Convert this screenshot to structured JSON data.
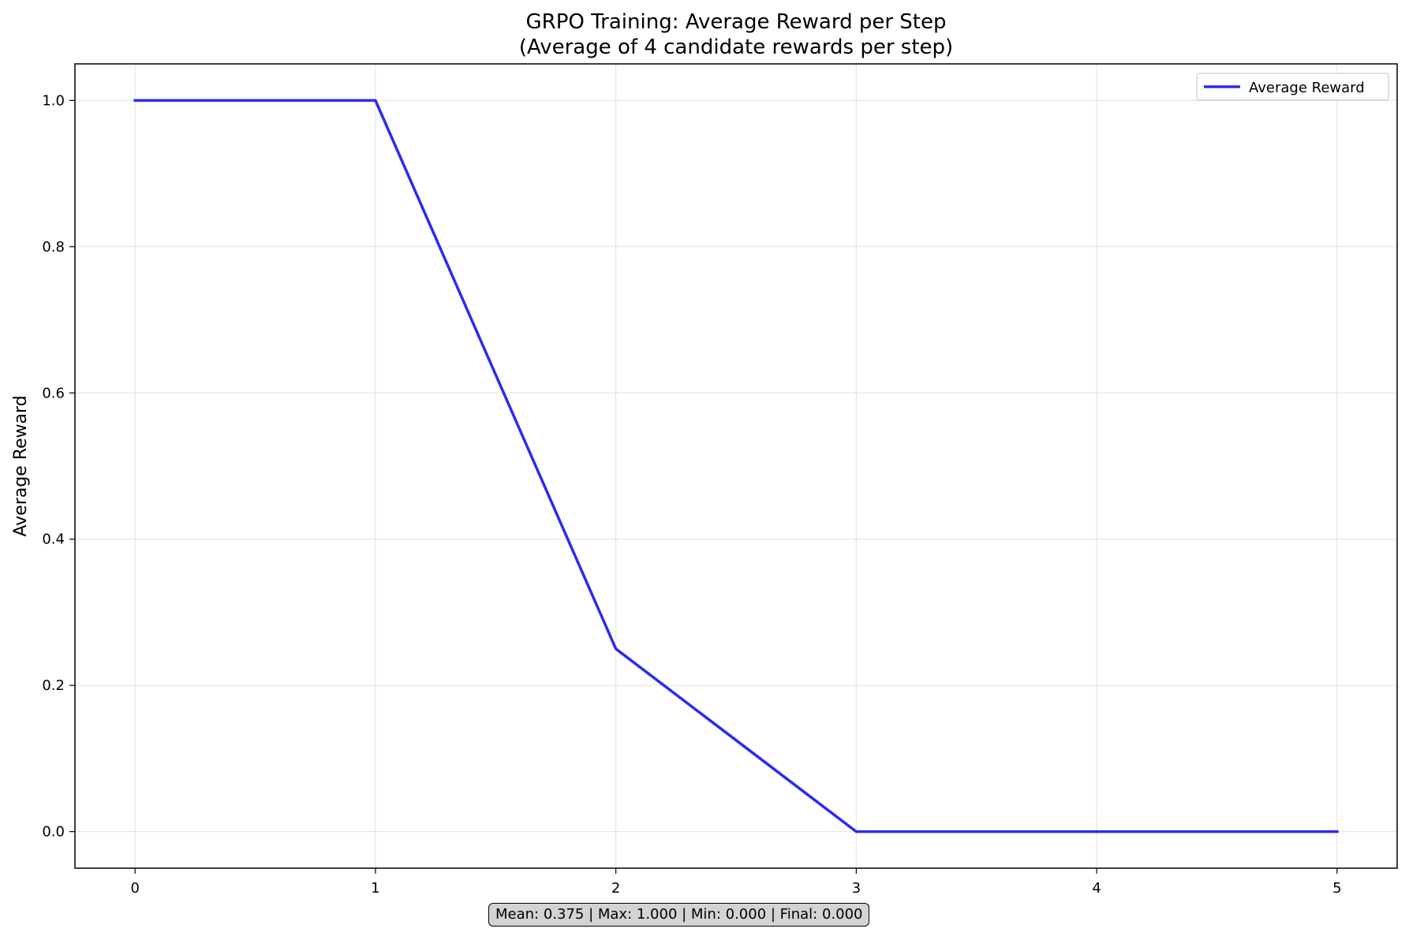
{
  "chart_data": {
    "type": "line",
    "title": "GRPO Training: Average Reward per Step",
    "subtitle": "(Average of 4 candidate rewards per step)",
    "xlabel": "",
    "ylabel": "Average Reward",
    "xlim": [
      -0.25,
      5.25
    ],
    "ylim": [
      -0.05,
      1.05
    ],
    "x_ticks": [
      0,
      1,
      2,
      3,
      4,
      5
    ],
    "x_tick_labels": [
      "0",
      "1",
      "2",
      "3",
      "4",
      "5"
    ],
    "y_ticks": [
      0.0,
      0.2,
      0.4,
      0.6,
      0.8,
      1.0
    ],
    "y_tick_labels": [
      "0.0",
      "0.2",
      "0.4",
      "0.6",
      "0.8",
      "1.0"
    ],
    "grid": true,
    "legend_position": "top-right",
    "series": [
      {
        "name": "Average Reward",
        "color": "#2b2bf0",
        "x": [
          0,
          1,
          2,
          3,
          4,
          5
        ],
        "y": [
          1.0,
          1.0,
          0.25,
          0.0,
          0.0,
          0.0
        ]
      }
    ],
    "stats_text": "Mean: 0.375 | Max: 1.000 | Min: 0.000 | Final: 0.000"
  }
}
